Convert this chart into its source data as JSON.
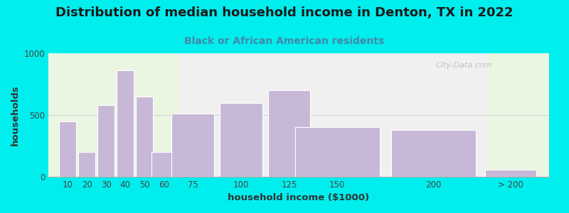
{
  "title": "Distribution of median household income in Denton, TX in 2022",
  "subtitle": "Black or African American residents",
  "xlabel": "household income ($1000)",
  "ylabel": "households",
  "background_outer": "#00EEEE",
  "plot_bg_left": "#eaf5e2",
  "plot_bg_right": "#f0f0f0",
  "plot_bg_far_right": "#eaf5e2",
  "bar_color": "#c8b8d8",
  "bar_edge_color": "#ffffff",
  "categories": [
    "10",
    "20",
    "30",
    "40",
    "50",
    "60",
    "75",
    "100",
    "125",
    "150",
    "200",
    "> 200"
  ],
  "values": [
    450,
    200,
    580,
    860,
    650,
    200,
    510,
    600,
    700,
    400,
    380,
    55
  ],
  "ylim": [
    0,
    1000
  ],
  "yticks": [
    0,
    500,
    1000
  ],
  "title_fontsize": 13,
  "subtitle_fontsize": 10,
  "label_fontsize": 9.5,
  "tick_fontsize": 8.5,
  "watermark_text": "City-Data.com"
}
